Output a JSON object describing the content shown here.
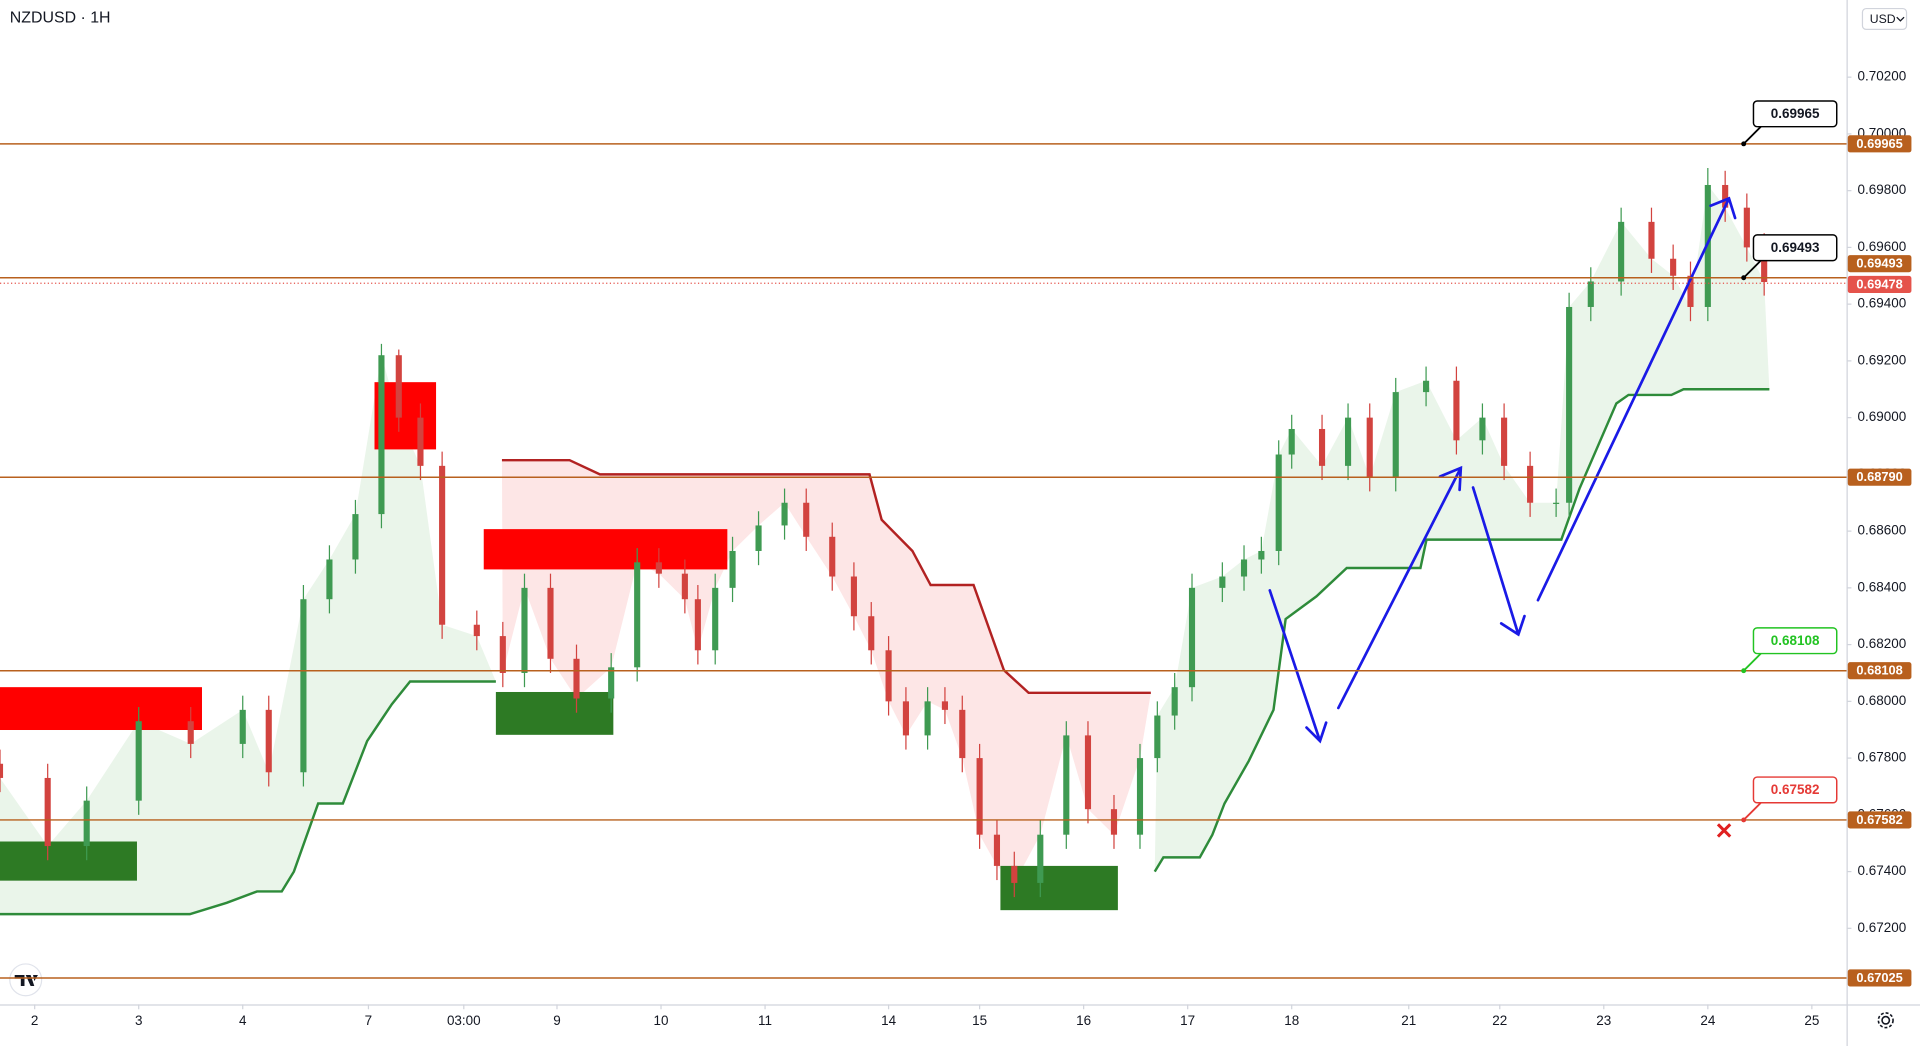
{
  "chart_data": {
    "type": "candlestick",
    "title": "NZDUSD · 1H",
    "currency": "USD",
    "up_color": "#3f9a52",
    "down_color": "#d2433f",
    "xlim": [
      0,
      426
    ],
    "ylim": [
      0.66932,
      0.70472
    ],
    "xticks": [
      {
        "value": 8,
        "label": "2"
      },
      {
        "value": 32,
        "label": "3"
      },
      {
        "value": 56,
        "label": "4"
      },
      {
        "value": 85,
        "label": "7"
      },
      {
        "value": 107,
        "label": "03:00"
      },
      {
        "value": 128.5,
        "label": "9"
      },
      {
        "value": 152.5,
        "label": "10"
      },
      {
        "value": 176.5,
        "label": "11"
      },
      {
        "value": 205,
        "label": "14"
      },
      {
        "value": 226,
        "label": "15"
      },
      {
        "value": 250,
        "label": "16"
      },
      {
        "value": 274,
        "label": "17"
      },
      {
        "value": 298,
        "label": "18"
      },
      {
        "value": 325,
        "label": "21"
      },
      {
        "value": 346,
        "label": "22"
      },
      {
        "value": 370,
        "label": "23"
      },
      {
        "value": 394,
        "label": "24"
      },
      {
        "value": 418,
        "label": "25"
      }
    ],
    "yticks": [
      {
        "value": 0.672,
        "label": "0.67200"
      },
      {
        "value": 0.674,
        "label": "0.67400"
      },
      {
        "value": 0.676,
        "label": "0.67600"
      },
      {
        "value": 0.678,
        "label": "0.67800"
      },
      {
        "value": 0.68,
        "label": "0.68000"
      },
      {
        "value": 0.682,
        "label": "0.68200"
      },
      {
        "value": 0.684,
        "label": "0.68400"
      },
      {
        "value": 0.686,
        "label": "0.68600"
      },
      {
        "value": 0.688,
        "label": "0.68800"
      },
      {
        "value": 0.69,
        "label": "0.69000"
      },
      {
        "value": 0.692,
        "label": "0.69200"
      },
      {
        "value": 0.694,
        "label": "0.69400"
      },
      {
        "value": 0.696,
        "label": "0.69600"
      },
      {
        "value": 0.698,
        "label": "0.69800"
      },
      {
        "value": 0.7,
        "label": "0.70000"
      },
      {
        "value": 0.702,
        "label": "0.70200"
      }
    ],
    "x": [
      0,
      11,
      20,
      32,
      44,
      56,
      62,
      70,
      76,
      82,
      88,
      92,
      97,
      102,
      110,
      116,
      121,
      127,
      133,
      141,
      147,
      152,
      158,
      161,
      165,
      169,
      175,
      181,
      186,
      192,
      197,
      201,
      205,
      209,
      214,
      218,
      222,
      226,
      230,
      234,
      240,
      246,
      251,
      257,
      263,
      267,
      271,
      275,
      282,
      287,
      291,
      295,
      298,
      305,
      311,
      316,
      322,
      329,
      336,
      342,
      347,
      353,
      359,
      362,
      367,
      374,
      381,
      386,
      390,
      394,
      398,
      403,
      407
    ],
    "open": [
      0.6778,
      0.6773,
      0.6749,
      0.6765,
      0.6793,
      0.6785,
      0.6797,
      0.6775,
      0.6836,
      0.685,
      0.6866,
      0.6922,
      0.69,
      0.6883,
      0.6827,
      0.6823,
      0.681,
      0.684,
      0.6815,
      0.6801,
      0.6812,
      0.6849,
      0.6845,
      0.6836,
      0.6818,
      0.684,
      0.6853,
      0.6862,
      0.687,
      0.6858,
      0.6844,
      0.683,
      0.6818,
      0.68,
      0.6788,
      0.68,
      0.6797,
      0.678,
      0.6753,
      0.6742,
      0.6736,
      0.6753,
      0.6788,
      0.6762,
      0.6753,
      0.678,
      0.6795,
      0.6805,
      0.684,
      0.6844,
      0.685,
      0.6853,
      0.6887,
      0.6896,
      0.6883,
      0.69,
      0.6879,
      0.6909,
      0.6913,
      0.6892,
      0.69,
      0.6883,
      0.687,
      0.687,
      0.6939,
      0.6948,
      0.6969,
      0.6956,
      0.695,
      0.6939,
      0.6982,
      0.6974,
      0.696
    ],
    "high": [
      0.6783,
      0.6778,
      0.677,
      0.6798,
      0.6798,
      0.6802,
      0.6802,
      0.6841,
      0.6855,
      0.6871,
      0.6926,
      0.6924,
      0.6905,
      0.6888,
      0.6832,
      0.6828,
      0.6845,
      0.6845,
      0.682,
      0.6817,
      0.6854,
      0.6854,
      0.685,
      0.6841,
      0.6845,
      0.6858,
      0.6867,
      0.6875,
      0.6875,
      0.6863,
      0.6849,
      0.6835,
      0.6823,
      0.6805,
      0.6805,
      0.6805,
      0.6802,
      0.6785,
      0.6758,
      0.6747,
      0.6758,
      0.6793,
      0.6793,
      0.6767,
      0.6785,
      0.68,
      0.681,
      0.6845,
      0.6849,
      0.6855,
      0.6858,
      0.6892,
      0.6901,
      0.6901,
      0.6905,
      0.6905,
      0.6914,
      0.6918,
      0.6918,
      0.6905,
      0.6905,
      0.6888,
      0.6875,
      0.6944,
      0.6953,
      0.6974,
      0.6974,
      0.6961,
      0.6955,
      0.6988,
      0.6987,
      0.6979,
      0.6965
    ],
    "low": [
      0.6768,
      0.6744,
      0.6744,
      0.676,
      0.678,
      0.678,
      0.677,
      0.677,
      0.6831,
      0.6845,
      0.6861,
      0.6895,
      0.6878,
      0.6822,
      0.6818,
      0.6805,
      0.6805,
      0.681,
      0.6796,
      0.6796,
      0.6807,
      0.684,
      0.6831,
      0.6813,
      0.6813,
      0.6835,
      0.6848,
      0.6857,
      0.6853,
      0.6839,
      0.6825,
      0.6813,
      0.6795,
      0.6783,
      0.6783,
      0.6792,
      0.6775,
      0.6748,
      0.6737,
      0.6731,
      0.6731,
      0.6748,
      0.6757,
      0.6748,
      0.6748,
      0.6775,
      0.679,
      0.68,
      0.6835,
      0.6839,
      0.6845,
      0.6848,
      0.6882,
      0.6878,
      0.6878,
      0.6874,
      0.6874,
      0.6904,
      0.6887,
      0.6887,
      0.6878,
      0.6865,
      0.6865,
      0.6865,
      0.6934,
      0.6943,
      0.6951,
      0.6945,
      0.6934,
      0.6934,
      0.6969,
      0.6955,
      0.6943
    ],
    "close": [
      0.6773,
      0.6749,
      0.6765,
      0.6793,
      0.6785,
      0.6797,
      0.6775,
      0.6836,
      0.685,
      0.6866,
      0.6922,
      0.69,
      0.6883,
      0.6827,
      0.6823,
      0.681,
      0.684,
      0.6815,
      0.6801,
      0.6812,
      0.6849,
      0.6845,
      0.6836,
      0.6818,
      0.684,
      0.6853,
      0.6862,
      0.687,
      0.6858,
      0.6844,
      0.683,
      0.6818,
      0.68,
      0.6788,
      0.68,
      0.6797,
      0.678,
      0.6753,
      0.6742,
      0.6736,
      0.6753,
      0.6788,
      0.6762,
      0.6753,
      0.678,
      0.6795,
      0.6805,
      0.684,
      0.6844,
      0.685,
      0.6853,
      0.6887,
      0.6896,
      0.6883,
      0.69,
      0.6879,
      0.6909,
      0.6913,
      0.6892,
      0.69,
      0.6883,
      0.687,
      0.687,
      0.6939,
      0.6948,
      0.6969,
      0.6956,
      0.695,
      0.6939,
      0.6982,
      0.6974,
      0.696,
      0.69478
    ],
    "supertrend": [
      {
        "color": "#2e8b3a",
        "fill": "#eaf5ea",
        "x": [
          0,
          43.8,
          52.3,
          59.3,
          65,
          67.8,
          73.4,
          79.1,
          84.7,
          90.4,
          94.6,
          114.4
        ],
        "values": [
          0.6725,
          0.6725,
          0.6729,
          0.6733,
          0.6733,
          0.674,
          0.6764,
          0.6764,
          0.6786,
          0.6799,
          0.6807,
          0.6807
        ]
      },
      {
        "color": "#b22222",
        "fill": "#fde6e6",
        "x": [
          115.8,
          131.4,
          138.4,
          200.6,
          203.4,
          210.5,
          214.7,
          224.6,
          231.6,
          237.3,
          265.5
        ],
        "values": [
          0.6885,
          0.6885,
          0.688,
          0.688,
          0.6864,
          0.6853,
          0.6841,
          0.6841,
          0.6811,
          0.6803,
          0.6803
        ]
      },
      {
        "color": "#2e8b3a",
        "fill": "#eaf5ea",
        "x": [
          266.4,
          268.4,
          276.8,
          279.7,
          282.5,
          288.1,
          293.8,
          296.6,
          303.7,
          310.7,
          327.7,
          329.1,
          360.2,
          364.4,
          372.9,
          375.7,
          385.6,
          388.4,
          408.2
        ],
        "values": [
          0.674,
          0.6745,
          0.6745,
          0.6753,
          0.6764,
          0.6779,
          0.6797,
          0.6829,
          0.6837,
          0.6847,
          0.6847,
          0.6857,
          0.6857,
          0.6875,
          0.6905,
          0.6908,
          0.6908,
          0.691,
          0.691
        ]
      }
    ],
    "zones": [
      {
        "color": "#ff0000",
        "x": [
          0,
          46.6
        ],
        "y": [
          0.67899,
          0.6805
        ]
      },
      {
        "color": "#2d7a24",
        "x": [
          0,
          31.6
        ],
        "y": [
          0.67368,
          0.67506
        ]
      },
      {
        "color": "#ff0000",
        "x": [
          86.4,
          100.6
        ],
        "y": [
          0.68888,
          0.69125
        ]
      },
      {
        "color": "#ff0000",
        "x": [
          111.6,
          167.8
        ],
        "y": [
          0.68465,
          0.68607
        ]
      },
      {
        "color": "#2d7a24",
        "x": [
          114.4,
          141.5
        ],
        "y": [
          0.67882,
          0.68033
        ]
      },
      {
        "color": "#2d7a24",
        "x": [
          230.8,
          257.9
        ],
        "y": [
          0.67264,
          0.6742
        ]
      }
    ],
    "level_color": "#b8601e",
    "levels": [
      {
        "value": 0.69965,
        "label": "0.69965",
        "callout_color": "#000000"
      },
      {
        "value": 0.69493,
        "label": "0.69493",
        "callout_color": "#000000"
      },
      {
        "value": 0.6879,
        "label": "0.68790"
      },
      {
        "value": 0.68108,
        "label": "0.68108",
        "callout_color": "#22c322"
      },
      {
        "value": 0.67582,
        "label": "0.67582",
        "callout_color": "#e53935"
      },
      {
        "value": 0.67025,
        "label": "0.67025"
      }
    ],
    "last_price": {
      "value": 0.69478,
      "label": "0.69478",
      "color": "#e5534b"
    }
  }
}
